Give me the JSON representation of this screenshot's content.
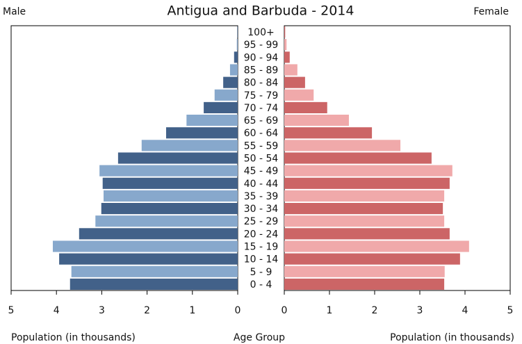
{
  "chart_data": {
    "type": "pyramid",
    "title": "Antigua and Barbuda - 2014",
    "categories": [
      "0 - 4",
      "5 - 9",
      "10 - 14",
      "15 - 19",
      "20 - 24",
      "25 - 29",
      "30 - 34",
      "35 - 39",
      "40 - 44",
      "45 - 49",
      "50 - 54",
      "55 - 59",
      "60 - 64",
      "65 - 69",
      "70 - 74",
      "75 - 79",
      "80 - 84",
      "85 - 89",
      "90 - 94",
      "95 - 99",
      "100+"
    ],
    "series": [
      {
        "name": "Male",
        "colors": [
          "#426189",
          "#87a8cc"
        ],
        "values": [
          3.7,
          3.67,
          3.94,
          4.08,
          3.5,
          3.14,
          3.01,
          2.96,
          2.98,
          3.05,
          2.64,
          2.12,
          1.58,
          1.13,
          0.75,
          0.51,
          0.32,
          0.17,
          0.08,
          0.02,
          0.01
        ]
      },
      {
        "name": "Female",
        "colors": [
          "#cc6566",
          "#f0a9aa"
        ],
        "values": [
          3.54,
          3.55,
          3.89,
          4.09,
          3.66,
          3.54,
          3.51,
          3.54,
          3.66,
          3.72,
          3.26,
          2.57,
          1.94,
          1.43,
          0.95,
          0.65,
          0.46,
          0.29,
          0.12,
          0.05,
          0.02
        ]
      }
    ],
    "xlabel": "Population (in thousands)",
    "categories_label": "Age Group",
    "xlim": [
      0,
      5
    ],
    "xticks": [
      0,
      1,
      2,
      3,
      4,
      5
    ]
  }
}
